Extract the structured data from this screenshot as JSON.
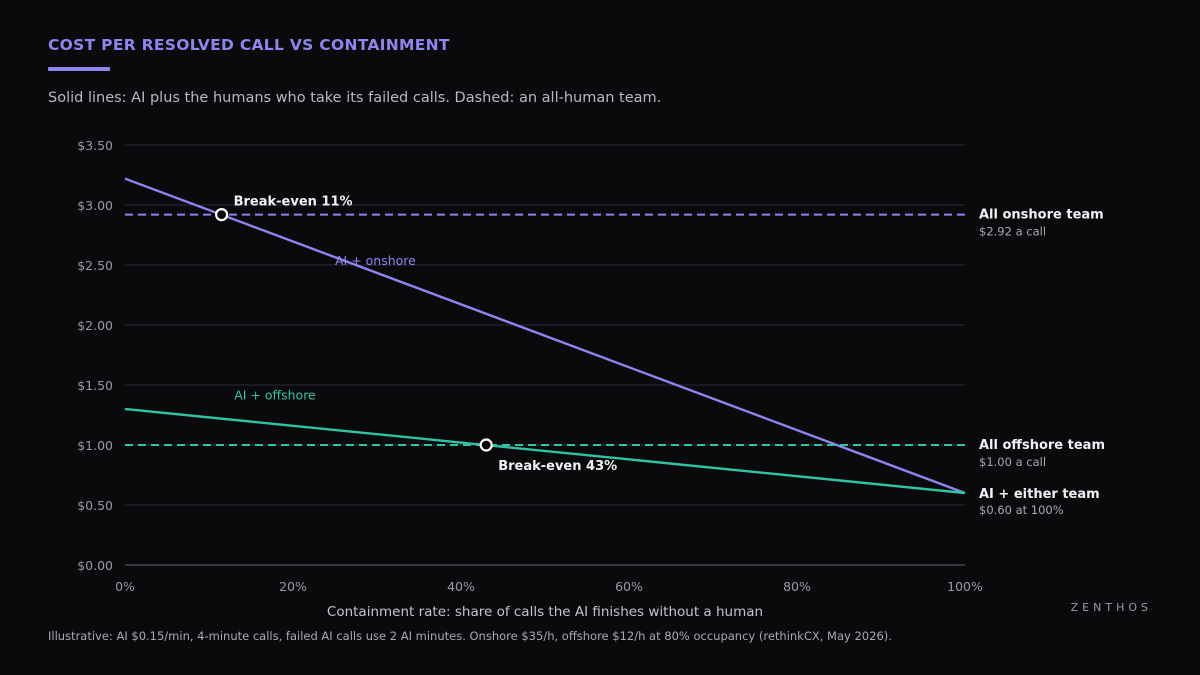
{
  "header": {
    "title": "COST PER RESOLVED CALL VS CONTAINMENT",
    "subtitle": "Solid lines: AI plus the humans who take its failed calls. Dashed: an all-human team."
  },
  "footer": {
    "footnote": "Illustrative: AI $0.15/min, 4-minute calls, failed AI calls use 2 AI minutes. Onshore $35/h, offshore $12/h at 80% occupancy (rethinkCX, May 2026).",
    "brand": "ZENTHOS"
  },
  "colors": {
    "background": "#0a0a0c",
    "onshore": "#8b86f0",
    "offshore": "#2ec4a4",
    "grid": "#2a2a33",
    "axis": "#55555f",
    "tick_text": "#9a9aa4",
    "annotation_text": "#f2f2f6",
    "sub_annotation_text": "#a9a9b2"
  },
  "chart_data": {
    "type": "line",
    "xlabel": "Containment rate: share of calls the AI finishes without a human",
    "ylabel": "",
    "xlim": [
      0,
      100
    ],
    "ylim": [
      0,
      3.5
    ],
    "grid": true,
    "x_ticks": [
      0,
      20,
      40,
      60,
      80,
      100
    ],
    "x_tick_labels": [
      "0%",
      "20%",
      "40%",
      "60%",
      "80%",
      "100%"
    ],
    "y_ticks": [
      0,
      0.5,
      1.0,
      1.5,
      2.0,
      2.5,
      3.0,
      3.5
    ],
    "y_tick_labels": [
      "$0.00",
      "$0.50",
      "$1.00",
      "$1.50",
      "$2.00",
      "$2.50",
      "$3.00",
      "$3.50"
    ],
    "series": [
      {
        "name": "AI + onshore",
        "style": "solid",
        "color": "#8b86f0",
        "x": [
          0,
          100
        ],
        "y": [
          3.22,
          0.6
        ],
        "label_at": [
          25,
          2.5
        ]
      },
      {
        "name": "AI + offshore",
        "style": "solid",
        "color": "#2ec4a4",
        "x": [
          0,
          100
        ],
        "y": [
          1.3,
          0.6
        ],
        "label_at": [
          13,
          1.38
        ]
      },
      {
        "name": "All onshore team",
        "style": "dashed",
        "color": "#8b86f0",
        "x": [
          0,
          100
        ],
        "y": [
          2.92,
          2.92
        ],
        "note": "$2.92 a call"
      },
      {
        "name": "All offshore team",
        "style": "dashed",
        "color": "#2ec4a4",
        "x": [
          0,
          100
        ],
        "y": [
          1.0,
          1.0
        ],
        "note": "$1.00 a call"
      }
    ],
    "endpoint_label": {
      "title": "AI + either team",
      "note": "$0.60 at 100%",
      "y": 0.6
    },
    "annotations": [
      {
        "text": "Break-even 11%",
        "x": 11.5,
        "y": 2.92,
        "placement": "above-right"
      },
      {
        "text": "Break-even 43%",
        "x": 43,
        "y": 1.0,
        "placement": "below-right"
      }
    ]
  }
}
